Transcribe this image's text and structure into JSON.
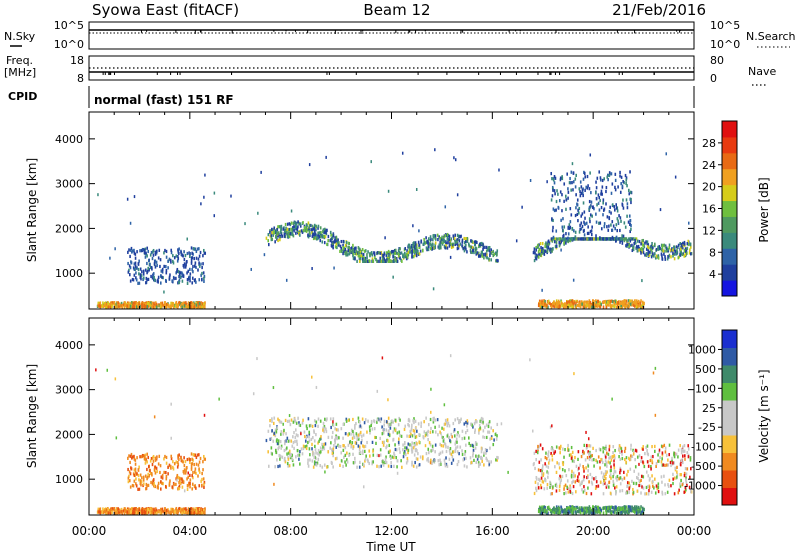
{
  "header": {
    "title_left": "Syowa East (fitACF)",
    "title_center": "Beam 12",
    "title_right": "21/Feb/2016"
  },
  "top_panels": {
    "nsky": {
      "label": "N.Sky",
      "ticks_left": [
        "10^5",
        "10^0"
      ]
    },
    "nsearch": {
      "label": "N.Search",
      "ticks_right": [
        "10^5",
        "10^0"
      ]
    },
    "freq": {
      "label_line1": "Freq.",
      "label_line2": "[MHz]",
      "ticks_left": [
        "18",
        "8"
      ]
    },
    "nave": {
      "label": "Nave",
      "ticks_right": [
        "80",
        "0"
      ]
    },
    "cpid": {
      "label": "CPID",
      "text": "normal (fast) 151 RF"
    }
  },
  "colors": {
    "power_bar": [
      "#1515e0",
      "#1f3f9e",
      "#2e63a7",
      "#3a8a7c",
      "#4f9a60",
      "#6fbf3f",
      "#d6cc1a",
      "#f0a020",
      "#e86a14",
      "#e83a10",
      "#e01010"
    ],
    "velocity_bar": [
      "#e01010",
      "#e85010",
      "#f08a20",
      "#f7c13a",
      "#c8c8c8",
      "#c8c8c8",
      "#5fbf3f",
      "#3f8a6a",
      "#2f5aa5",
      "#1a2fd0"
    ]
  },
  "chart_data": [
    {
      "type": "heatmap",
      "name": "power",
      "xlabel": "",
      "ylabel": "Slant Range [km]",
      "xlim": [
        "00:00",
        "24:00"
      ],
      "ylim": [
        200,
        4600
      ],
      "y_ticks": [
        "1000",
        "2000",
        "3000",
        "4000"
      ],
      "colorbar": {
        "label": "Power [dB]",
        "ticks": [
          "4",
          "8",
          "12",
          "16",
          "20",
          "24",
          "28"
        ],
        "range": [
          0,
          30
        ]
      },
      "regions": [
        {
          "t_start": 0.3,
          "t_end": 4.6,
          "r_min": 270,
          "r_max": 380,
          "level": "high"
        },
        {
          "t_start": 1.5,
          "t_end": 4.6,
          "r_min": 800,
          "r_max": 1600,
          "level": "low"
        },
        {
          "t_start": 7.0,
          "t_end": 16.2,
          "r_min": 1300,
          "r_max": 2400,
          "level": "medium"
        },
        {
          "t_start": 17.6,
          "t_end": 23.9,
          "r_min": 700,
          "r_max": 1800,
          "level": "medium"
        },
        {
          "t_start": 17.8,
          "t_end": 22.0,
          "r_min": 270,
          "r_max": 420,
          "level": "high"
        },
        {
          "t_start": 18.3,
          "t_end": 21.5,
          "r_min": 1800,
          "r_max": 3300,
          "level": "low"
        }
      ]
    },
    {
      "type": "heatmap",
      "name": "velocity",
      "xlabel": "Time UT",
      "ylabel": "Slant Range [km]",
      "xlim": [
        "00:00",
        "24:00"
      ],
      "x_ticks": [
        "00:00",
        "04:00",
        "08:00",
        "12:00",
        "16:00",
        "20:00",
        "00:00"
      ],
      "ylim": [
        200,
        4600
      ],
      "y_ticks": [
        "1000",
        "2000",
        "3000",
        "4000"
      ],
      "colorbar": {
        "label": "Velocity [m s⁻¹]",
        "ticks": [
          "-1000",
          "-500",
          "-100",
          "-25",
          "25",
          "100",
          "500",
          "1000"
        ],
        "range": [
          -1000,
          1000
        ]
      },
      "regions": [
        {
          "t_start": 0.3,
          "t_end": 4.6,
          "r_min": 270,
          "r_max": 380,
          "level": "negative"
        },
        {
          "t_start": 1.5,
          "t_end": 4.6,
          "r_min": 800,
          "r_max": 1600,
          "level": "negative"
        },
        {
          "t_start": 7.0,
          "t_end": 16.2,
          "r_min": 1300,
          "r_max": 2400,
          "level": "near-zero"
        },
        {
          "t_start": 17.6,
          "t_end": 23.9,
          "r_min": 700,
          "r_max": 1800,
          "level": "mixed"
        },
        {
          "t_start": 17.8,
          "t_end": 22.0,
          "r_min": 270,
          "r_max": 420,
          "level": "positive"
        }
      ]
    }
  ]
}
